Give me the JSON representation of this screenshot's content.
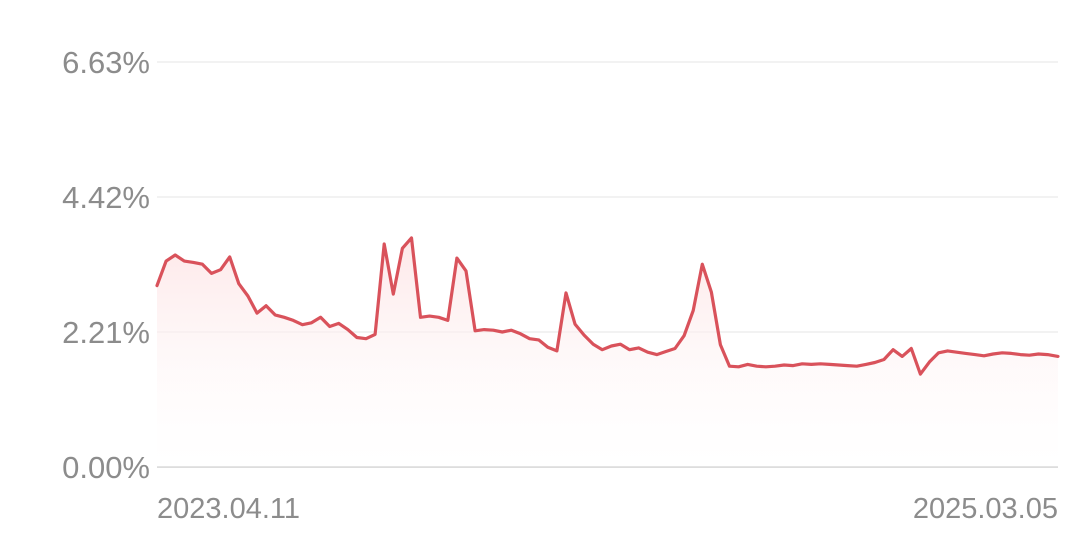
{
  "chart_data": {
    "type": "area",
    "title": "",
    "xlabel": "",
    "ylabel": "",
    "ylim": [
      0,
      6.63
    ],
    "yticks": [
      "6.63%",
      "4.42%",
      "2.21%",
      "0.00%"
    ],
    "xticks": [
      "2023.04.11",
      "2025.03.05"
    ],
    "grid": true,
    "legend": "none",
    "colors": {
      "line": "#d9525b",
      "fill_top": "#fde5e6",
      "grid": "#eeeeee",
      "baseline": "#dddddd",
      "tick_text": "#8c8c8c"
    },
    "series": [
      {
        "x": [
          "2023-04-11",
          "2023-04-18",
          "2023-04-25",
          "2023-05-02",
          "2023-05-09",
          "2023-05-16",
          "2023-05-23",
          "2023-05-30",
          "2023-06-06",
          "2023-06-13",
          "2023-06-20",
          "2023-06-27",
          "2023-07-04",
          "2023-07-11",
          "2023-07-18",
          "2023-07-25",
          "2023-08-01",
          "2023-08-08",
          "2023-08-15",
          "2023-08-22",
          "2023-08-29",
          "2023-09-05",
          "2023-09-12",
          "2023-09-19",
          "2023-09-26",
          "2023-10-03",
          "2023-10-10",
          "2023-10-17",
          "2023-10-24",
          "2023-10-31",
          "2023-11-07",
          "2023-11-14",
          "2023-11-21",
          "2023-11-28",
          "2023-12-05",
          "2023-12-12",
          "2023-12-19",
          "2023-12-26",
          "2024-01-02",
          "2024-01-09",
          "2024-01-16",
          "2024-01-23",
          "2024-01-30",
          "2024-02-06",
          "2024-02-13",
          "2024-02-20",
          "2024-02-27",
          "2024-03-05",
          "2024-03-12",
          "2024-03-19",
          "2024-03-26",
          "2024-04-02",
          "2024-04-09",
          "2024-04-16",
          "2024-04-23",
          "2024-04-30",
          "2024-05-07",
          "2024-05-14",
          "2024-05-21",
          "2024-05-28",
          "2024-06-04",
          "2024-06-11",
          "2024-06-18",
          "2024-06-25",
          "2024-07-02",
          "2024-07-09",
          "2024-07-16",
          "2024-07-23",
          "2024-07-30",
          "2024-08-06",
          "2024-08-13",
          "2024-08-20",
          "2024-08-27",
          "2024-09-03",
          "2024-09-10",
          "2024-09-17",
          "2024-09-24",
          "2024-10-01",
          "2024-10-08",
          "2024-10-15",
          "2024-10-22",
          "2024-10-29",
          "2024-11-05",
          "2024-11-12",
          "2024-11-19",
          "2024-11-26",
          "2024-12-03",
          "2024-12-10",
          "2024-12-17",
          "2024-12-24",
          "2024-12-31",
          "2025-01-07",
          "2025-01-14",
          "2025-01-21",
          "2025-01-28",
          "2025-02-04",
          "2025-02-11",
          "2025-02-18",
          "2025-02-25",
          "2025-03-05"
        ],
        "values": [
          2.97,
          3.37,
          3.47,
          3.37,
          3.35,
          3.32,
          3.17,
          3.23,
          3.44,
          3.0,
          2.8,
          2.52,
          2.64,
          2.49,
          2.45,
          2.4,
          2.33,
          2.36,
          2.45,
          2.3,
          2.35,
          2.25,
          2.12,
          2.1,
          2.17,
          3.65,
          2.83,
          3.58,
          3.75,
          2.45,
          2.47,
          2.45,
          2.4,
          3.42,
          3.21,
          2.23,
          2.25,
          2.24,
          2.21,
          2.24,
          2.18,
          2.1,
          2.08,
          1.96,
          1.9,
          2.85,
          2.34,
          2.16,
          2.01,
          1.92,
          1.98,
          2.01,
          1.92,
          1.95,
          1.88,
          1.84,
          1.89,
          1.94,
          2.15,
          2.56,
          3.32,
          2.86,
          2.0,
          1.65,
          1.64,
          1.68,
          1.65,
          1.64,
          1.65,
          1.67,
          1.66,
          1.69,
          1.68,
          1.69,
          1.68,
          1.67,
          1.66,
          1.65,
          1.68,
          1.71,
          1.76,
          1.92,
          1.81,
          1.94,
          1.52,
          1.72,
          1.87,
          1.9,
          1.88,
          1.86,
          1.84,
          1.82,
          1.85,
          1.87,
          1.86,
          1.84,
          1.83,
          1.85,
          1.84,
          1.81
        ]
      }
    ]
  }
}
